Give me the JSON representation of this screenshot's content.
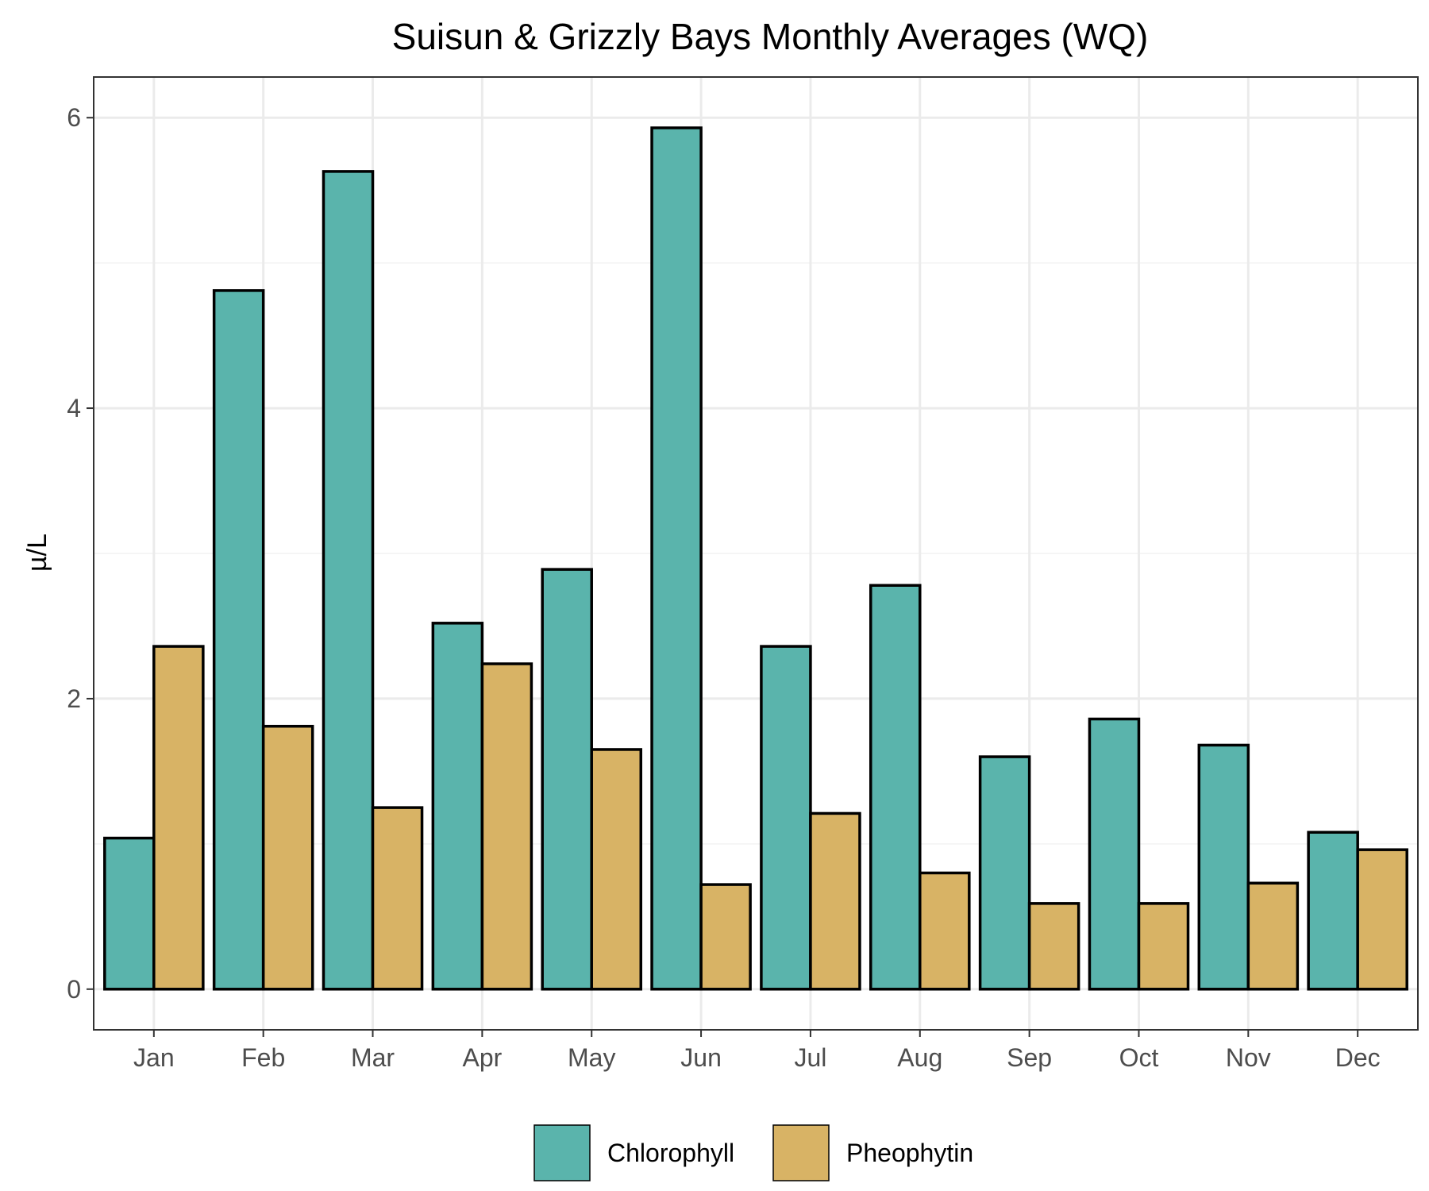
{
  "chart_data": {
    "type": "bar",
    "title": "Suisun & Grizzly Bays Monthly Averages (WQ)",
    "xlabel": "",
    "ylabel": "µ/L",
    "categories": [
      "Jan",
      "Feb",
      "Mar",
      "Apr",
      "May",
      "Jun",
      "Jul",
      "Aug",
      "Sep",
      "Oct",
      "Nov",
      "Dec"
    ],
    "series": [
      {
        "name": "Chlorophyll",
        "color": "#5ab4ac",
        "values": [
          1.04,
          4.81,
          5.63,
          2.52,
          2.89,
          5.93,
          2.36,
          2.78,
          1.6,
          1.86,
          1.68,
          1.08
        ]
      },
      {
        "name": "Pheophytin",
        "color": "#d8b365",
        "values": [
          2.36,
          1.81,
          1.25,
          2.24,
          1.65,
          0.72,
          1.21,
          0.8,
          0.59,
          0.59,
          0.73,
          0.96
        ]
      }
    ],
    "ylim": [
      -0.28,
      6.28
    ],
    "yticks": [
      0,
      2,
      4,
      6
    ],
    "grid": true,
    "legend_position": "bottom"
  }
}
